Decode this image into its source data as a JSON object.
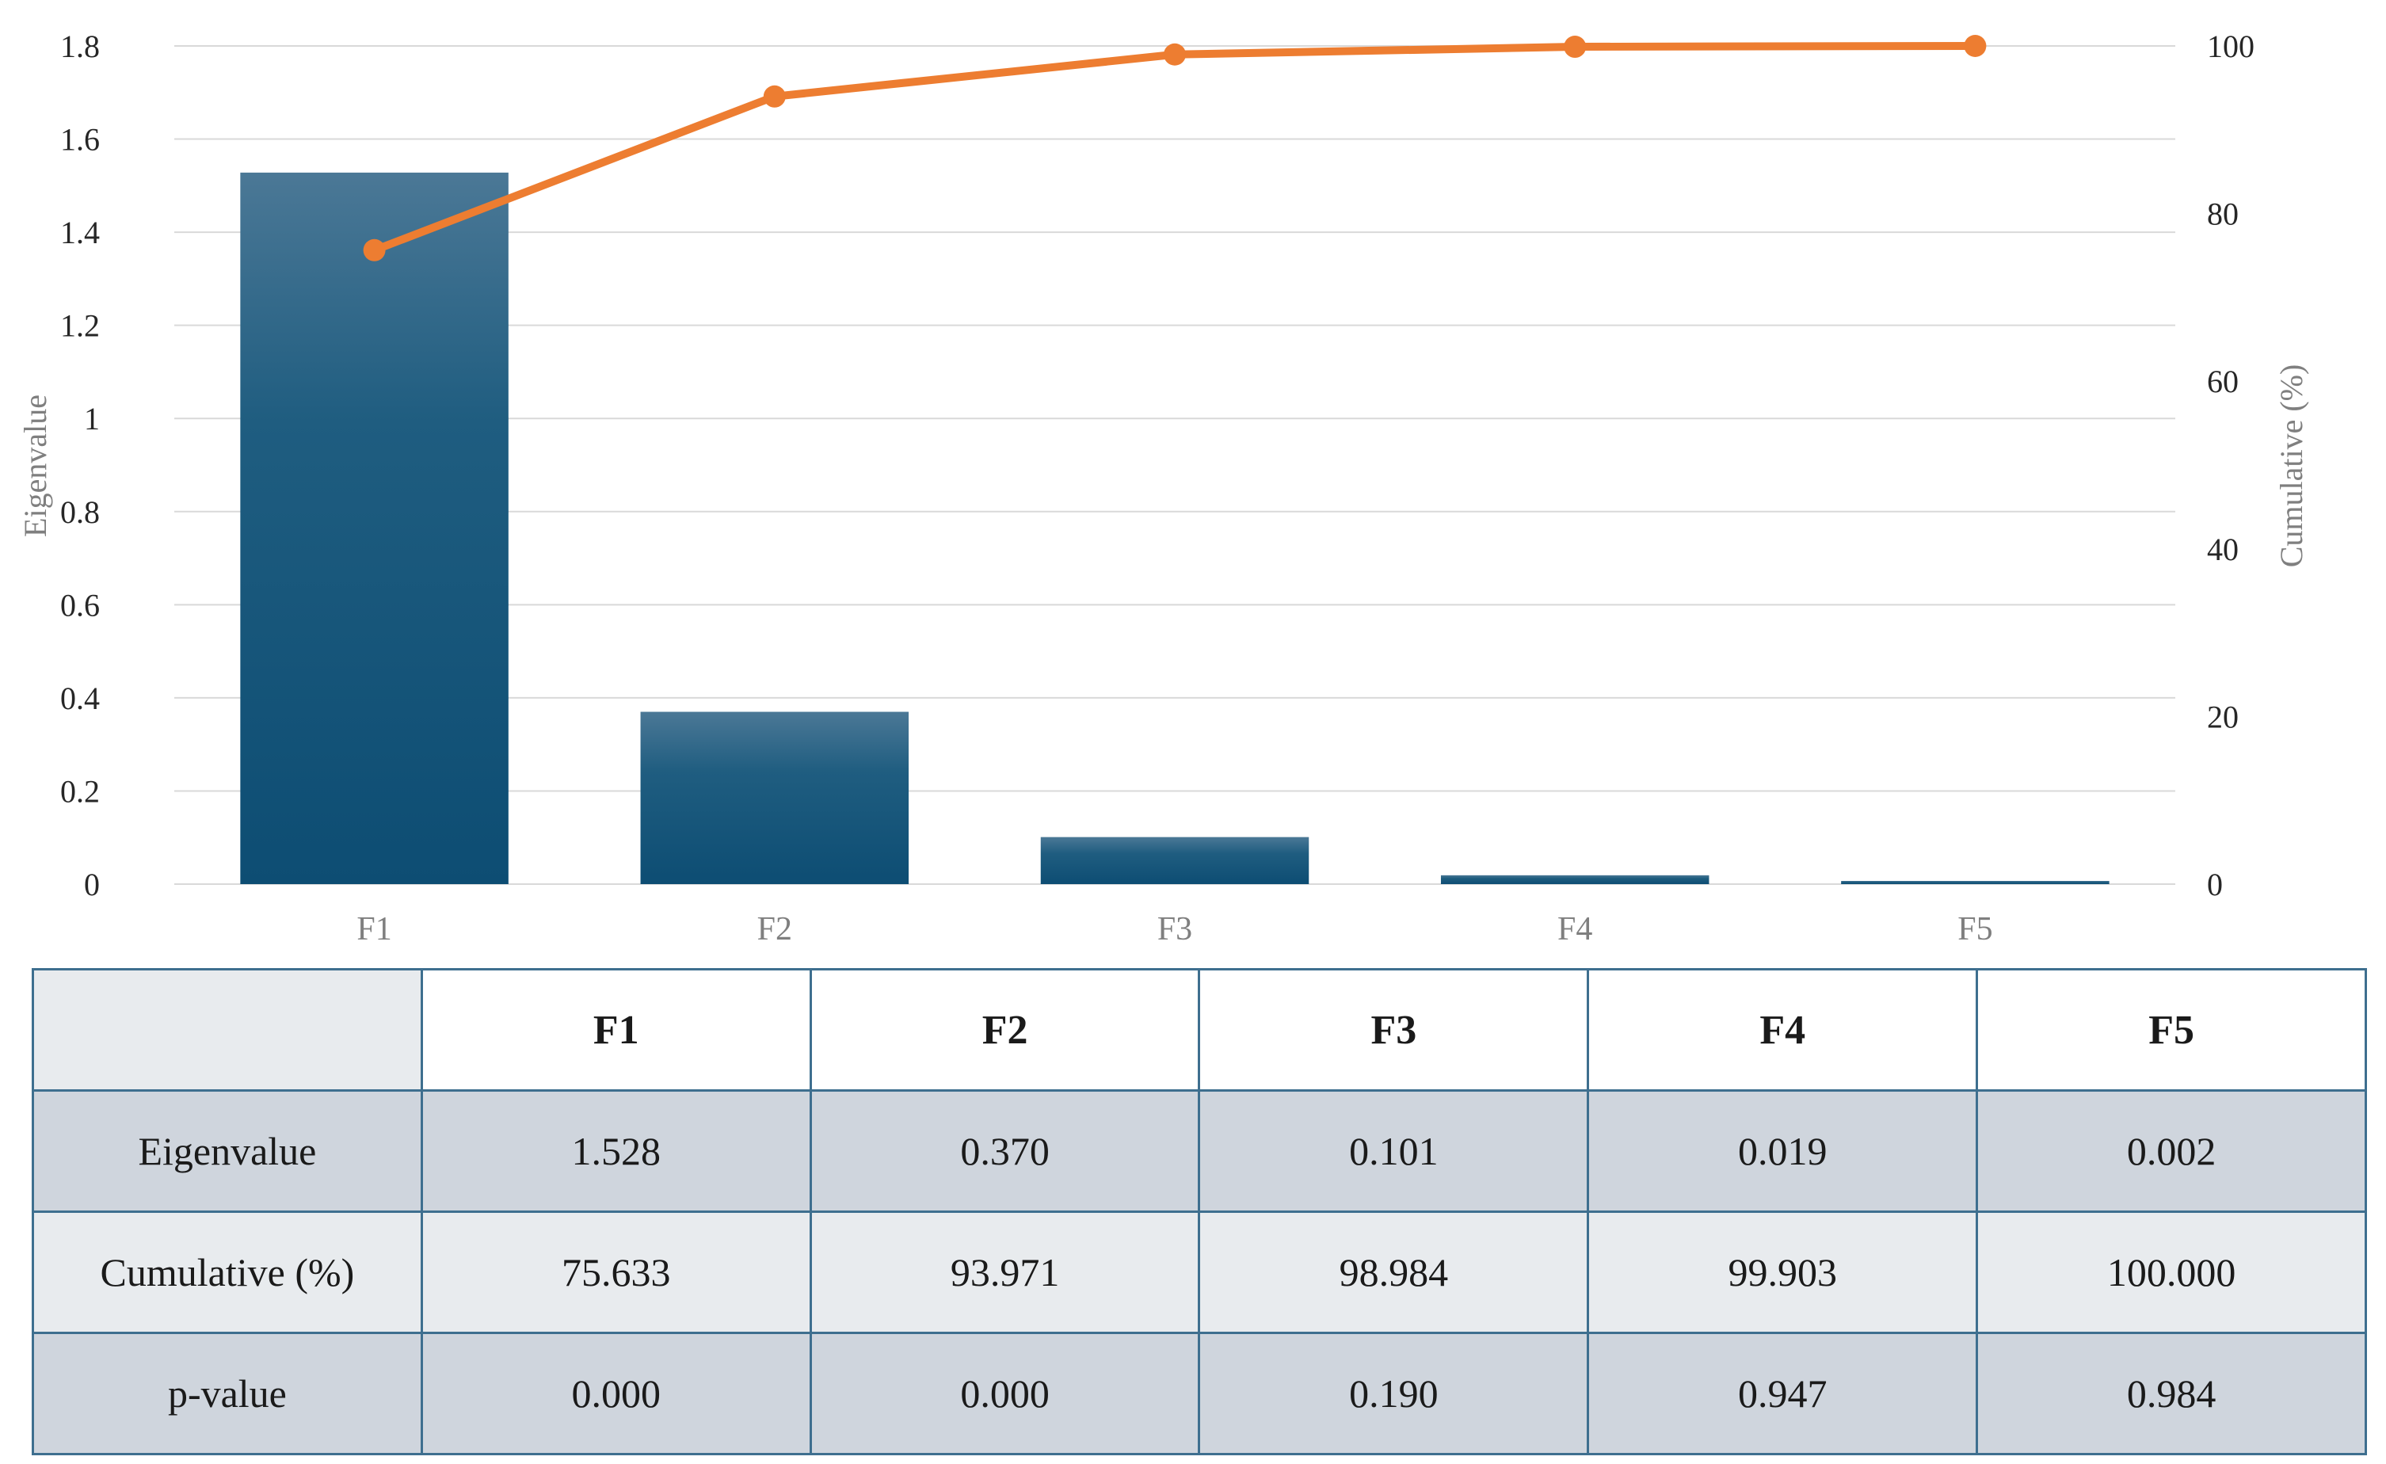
{
  "chart_data": {
    "type": "bar",
    "categories": [
      "F1",
      "F2",
      "F3",
      "F4",
      "F5"
    ],
    "series": [
      {
        "type": "bar",
        "axis": "left",
        "values": [
          1.528,
          0.37,
          0.101,
          0.019,
          0.002
        ],
        "color": "#1f5a7c"
      },
      {
        "type": "line",
        "axis": "right",
        "values": [
          75.633,
          93.971,
          98.984,
          99.903,
          100.0
        ],
        "color": "#ed7d31"
      }
    ],
    "ylabel": "Eigenvalue",
    "y2label": "Cumulative (%)",
    "ylim": [
      0,
      1.8
    ],
    "yticks": [
      "0",
      "0.2",
      "0.4",
      "0.6",
      "0.8",
      "1",
      "1.2",
      "1.4",
      "1.6",
      "1.8"
    ],
    "y2lim": [
      0,
      100
    ],
    "y2ticks": [
      "0",
      "20",
      "40",
      "60",
      "80",
      "100"
    ],
    "grid": true
  },
  "table": {
    "header": [
      "F1",
      "F2",
      "F3",
      "F4",
      "F5"
    ],
    "rows": [
      {
        "label": "Eigenvalue",
        "cells": [
          "1.528",
          "0.370",
          "0.101",
          "0.019",
          "0.002"
        ]
      },
      {
        "label": "Cumulative (%)",
        "cells": [
          "75.633",
          "93.971",
          "98.984",
          "99.903",
          "100.000"
        ]
      },
      {
        "label": "p-value",
        "cells": [
          "0.000",
          "0.000",
          "0.190",
          "0.947",
          "0.984"
        ]
      }
    ]
  }
}
